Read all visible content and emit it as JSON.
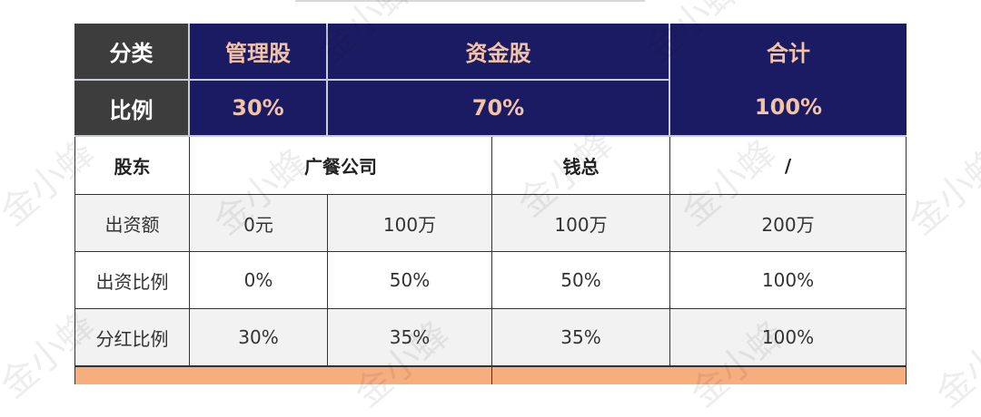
{
  "watermark": "金小蜂",
  "header": {
    "category_label": "分类",
    "management_shares": "管理股",
    "capital_shares": "资金股",
    "total": "合计",
    "ratio_label": "比例",
    "management_ratio": "30%",
    "capital_ratio": "70%",
    "total_ratio": "100%"
  },
  "shareholders": {
    "label": "股东",
    "company": "广餐公司",
    "person": "钱总",
    "total": "/"
  },
  "rows": [
    {
      "label": "出资额",
      "values": [
        "0元",
        "100万",
        "100万",
        "200万"
      ]
    },
    {
      "label": "出资比例",
      "values": [
        "0%",
        "50%",
        "50%",
        "100%"
      ]
    },
    {
      "label": "分红比例",
      "values": [
        "30%",
        "35%",
        "35%",
        "100%"
      ]
    }
  ],
  "colors": {
    "header_dark": "#3d3d3d",
    "header_navy": "#1b1b63",
    "header_text": "#f3c3a6",
    "stripe": "#f2f2f2",
    "footer_orange": "#f7ae7e"
  }
}
